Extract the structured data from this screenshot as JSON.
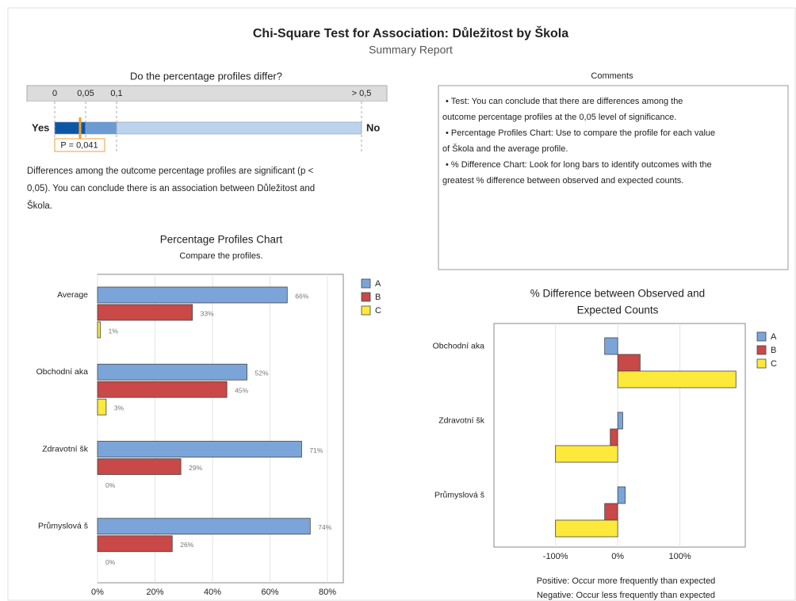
{
  "header": {
    "title": "Chi-Square Test for Association: Důležitost by Škola",
    "subtitle": "Summary Report"
  },
  "pvalue_panel": {
    "title": "Do the percentage profiles differ?",
    "ticks": [
      0,
      {
        "value": 0.05,
        "label": "0,05"
      },
      {
        "value": 0.1,
        "label": "0,1"
      },
      {
        "value": 0.5,
        "label": "> 0,5"
      }
    ],
    "yes": "Yes",
    "no": "No",
    "p_value": 0.041,
    "p_label": "P = 0,041",
    "conclusion": [
      "Differences among the outcome percentage profiles are significant (p <",
      "0,05). You can conclude there is an association between Důležitost and",
      "Škola."
    ]
  },
  "comments": {
    "title": "Comments",
    "lines": [
      "• Test: You can conclude that there are differences among the",
      "outcome percentage profiles at the 0,05 level of significance.",
      "• Percentage Profiles Chart: Use to compare the profile for each value",
      "of Škola and the average profile.",
      "• % Difference Chart: Look for long bars to identify outcomes with the",
      "greatest % difference between observed and expected counts."
    ]
  },
  "chart_data": [
    {
      "type": "bar",
      "orientation": "horizontal",
      "title": [
        "Percentage Profiles Chart"
      ],
      "subtitle": "Compare the profiles.",
      "categories": [
        "Average",
        "Obchodní aka",
        "Zdravotní šk",
        "Průmyslová š"
      ],
      "series": [
        {
          "name": "A",
          "color": "#7ba5d9",
          "values": [
            66,
            52,
            71,
            74
          ],
          "value_labels": [
            "66%",
            "52%",
            "71%",
            "74%"
          ]
        },
        {
          "name": "B",
          "color": "#c94848",
          "values": [
            33,
            45,
            29,
            26
          ],
          "value_labels": [
            "33%",
            "45%",
            "29%",
            "26%"
          ]
        },
        {
          "name": "C",
          "color": "#fce93c",
          "values": [
            1,
            3,
            0,
            0
          ],
          "value_labels": [
            "1%",
            "3%",
            "0%",
            "0%"
          ]
        }
      ],
      "xlim": [
        0,
        85.5
      ],
      "xticks": [
        {
          "value": 0,
          "label": "0%"
        },
        {
          "value": 20,
          "label": "20%"
        },
        {
          "value": 40,
          "label": "40%"
        },
        {
          "value": 60,
          "label": "60%"
        },
        {
          "value": 80,
          "label": "80%"
        }
      ],
      "grid": true,
      "legend": "right"
    },
    {
      "type": "bar",
      "orientation": "horizontal",
      "title": [
        "% Difference between Observed and",
        "Expected Counts"
      ],
      "categories": [
        "Obchodní aka",
        "Zdravotní šk",
        "Průmyslová š"
      ],
      "series": [
        {
          "name": "A",
          "color": "#7ba5d9",
          "values": [
            -21,
            8,
            12
          ]
        },
        {
          "name": "B",
          "color": "#c94848",
          "values": [
            36,
            -12,
            -21
          ]
        },
        {
          "name": "C",
          "color": "#fce93c",
          "values": [
            190,
            -100,
            -100
          ]
        }
      ],
      "xlim": [
        -199,
        205
      ],
      "xticks": [
        {
          "value": -100,
          "label": "-100%"
        },
        {
          "value": 0,
          "label": "0%"
        },
        {
          "value": 100,
          "label": "100%"
        }
      ],
      "grid": true,
      "legend": "right",
      "notes": [
        "Positive: Occur more frequently than expected",
        "Negative: Occur less frequently than expected"
      ]
    }
  ]
}
